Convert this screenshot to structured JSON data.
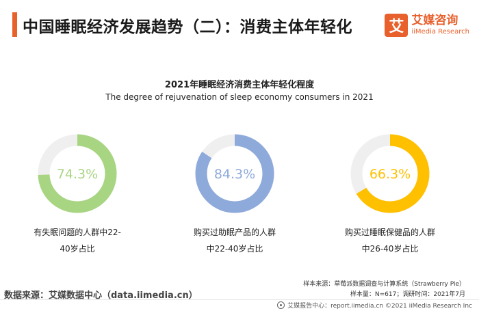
{
  "header": {
    "title": "中国睡眠经济发展趋势（二）：消费主体年轻化",
    "logo_mark": "艾",
    "logo_cn": "艾媒咨询",
    "logo_en": "iiMedia Research"
  },
  "chart_data": {
    "type": "donut",
    "title": "2021年睡眠经济消费主体年轻化程度",
    "subtitle": "The degree of rejuvenation of sleep economy consumers in 2021",
    "items": [
      {
        "label_line1": "有失眠问题的人群中22-",
        "label_line2": "40岁占比",
        "value": 74.3,
        "value_label": "74.3%",
        "color": "#a8d582"
      },
      {
        "label_line1": "购买过助眠产品的人群",
        "label_line2": "中22-40岁占比",
        "value": 84.3,
        "value_label": "84.3%",
        "color": "#8eaadb"
      },
      {
        "label_line1": "购买过睡眠保健品的人群",
        "label_line2": "中26-40岁占比",
        "value": 66.3,
        "value_label": "66.3%",
        "color": "#ffc000"
      }
    ],
    "track_color": "#efefef"
  },
  "notes": {
    "sample_source": "样本来源：草莓派数据调查与计算系统（Strawberry Pie）",
    "sample_size": "样本量：N=617；调研时间：2021年7月"
  },
  "footer": {
    "data_source": "数据来源：艾媒数据中心（data.iimedia.cn）",
    "copyright": "艾媒报告中心：report.iimedia.cn   ©2021  iiMedia Research  Inc"
  }
}
